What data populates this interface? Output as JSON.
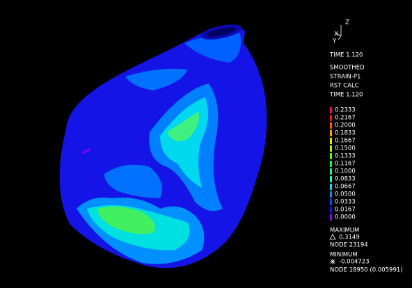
{
  "triad": {
    "z": "Z",
    "x": "X",
    "y": "Y"
  },
  "header": {
    "time": "TIME 1.120",
    "lines": [
      "SMOOTHED",
      "STRAIN-P1",
      "RST CALC",
      "TIME 1.120"
    ]
  },
  "legend": {
    "entries": [
      {
        "label": "0.2333",
        "color": "#ff0070"
      },
      {
        "label": "0.2167",
        "color": "#ff1010"
      },
      {
        "label": "0.2000",
        "color": "#ff6000"
      },
      {
        "label": "0.1833",
        "color": "#ffa000"
      },
      {
        "label": "0.1667",
        "color": "#e8e000"
      },
      {
        "label": "0.1500",
        "color": "#a8ff00"
      },
      {
        "label": "0.1333",
        "color": "#50ff00"
      },
      {
        "label": "0.1167",
        "color": "#00ff40"
      },
      {
        "label": "0.1000",
        "color": "#00ff90"
      },
      {
        "label": "0.0833",
        "color": "#00ffc8"
      },
      {
        "label": "0.0667",
        "color": "#00e0ff"
      },
      {
        "label": "0.0500",
        "color": "#0098ff"
      },
      {
        "label": "0.0333",
        "color": "#0050ff"
      },
      {
        "label": "0.0167",
        "color": "#1010ff"
      },
      {
        "label": "0.0000",
        "color": "#8000ff"
      }
    ]
  },
  "extremes": {
    "max_title": "MAXIMUM",
    "max_value": "0.3149",
    "max_node": "NODE 23194",
    "min_title": "MINIMUM",
    "min_value": "-0.004723",
    "min_node": "NODE 18950 (0.005991)"
  }
}
